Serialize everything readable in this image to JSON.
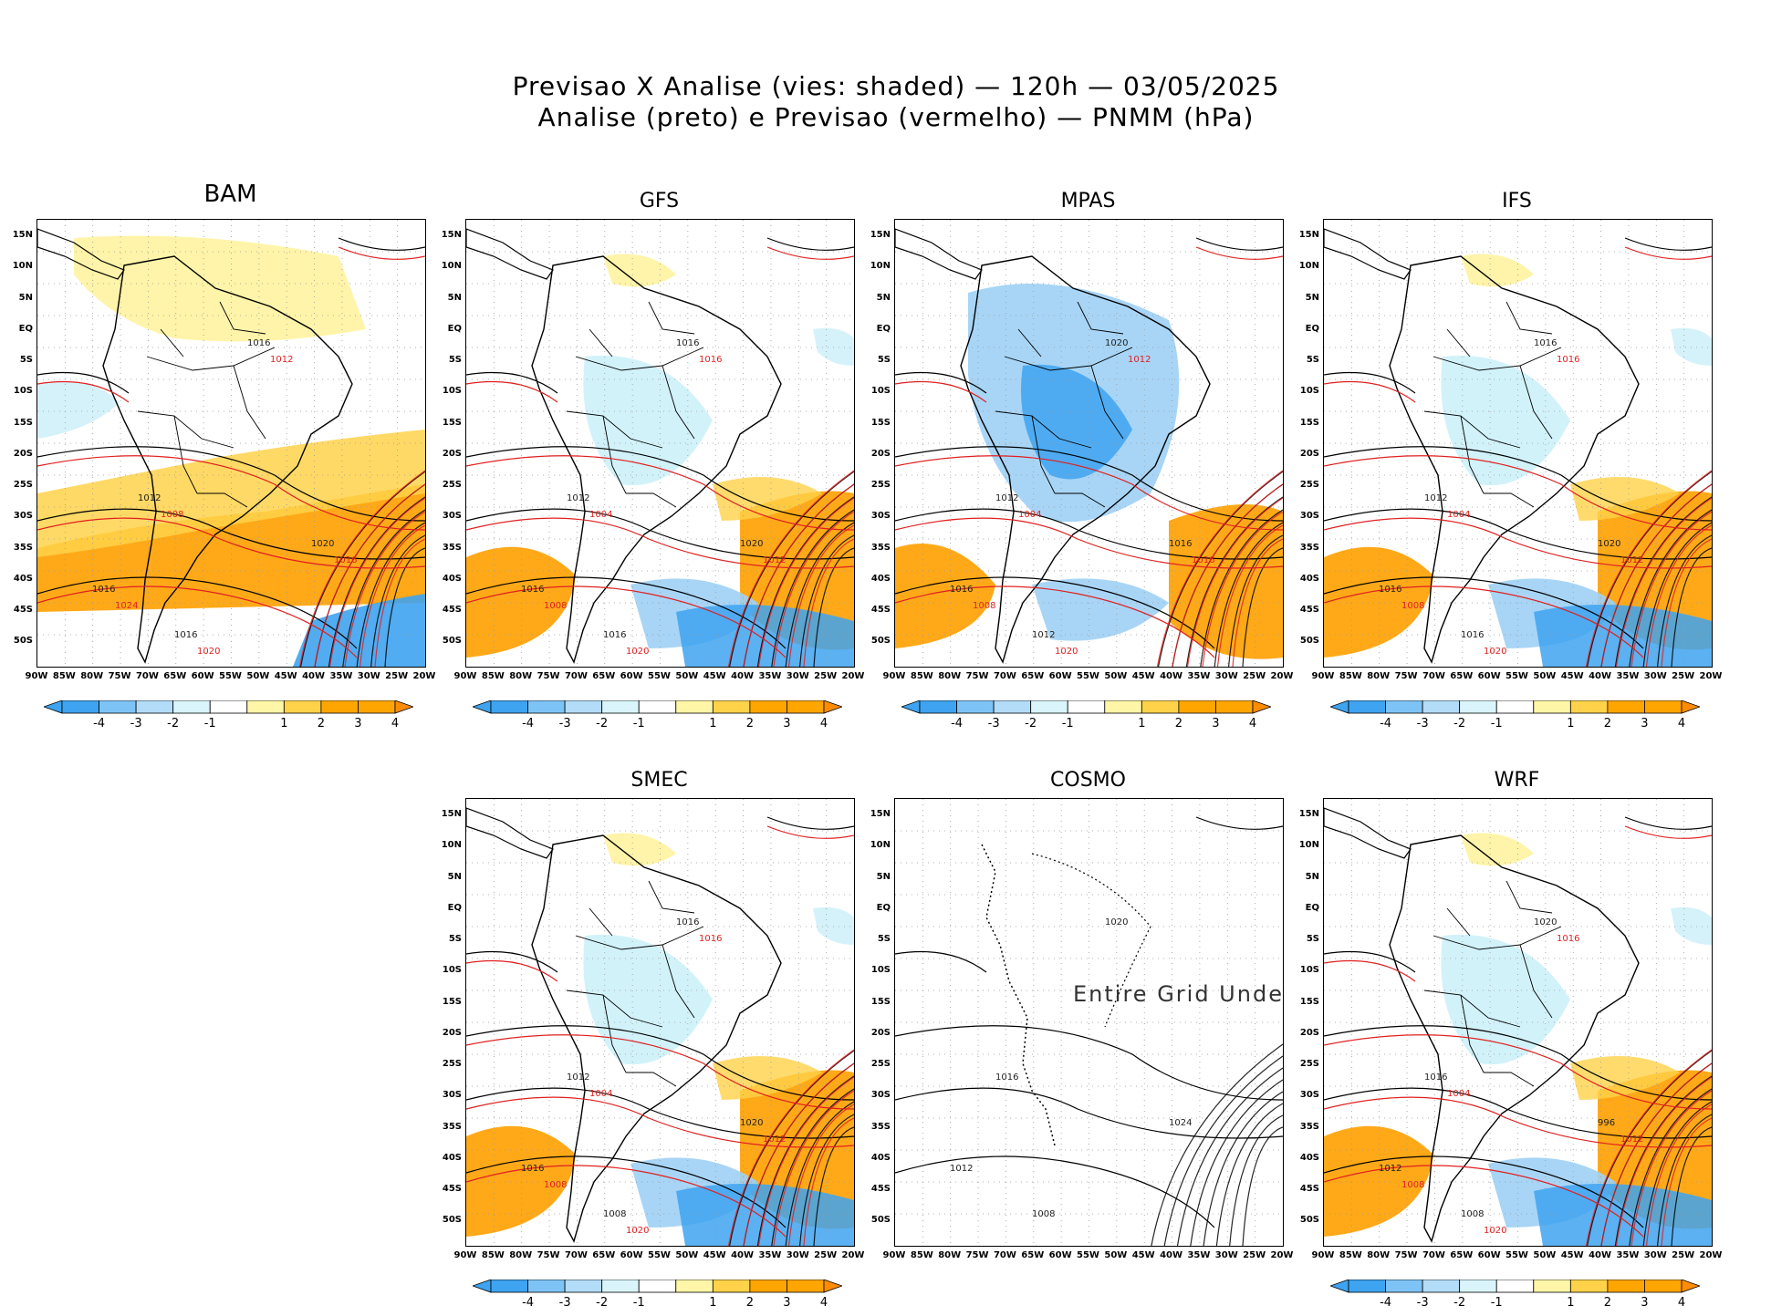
{
  "header": {
    "title_line1": "Previsao X Analise (vies: shaded) — 120h — 03/05/2025",
    "title_line2": "Analise (preto) e Previsao (vermelho) — PNMM (hPa)"
  },
  "axes": {
    "lat_labels": [
      "15N",
      "10N",
      "5N",
      "EQ",
      "5S",
      "10S",
      "15S",
      "20S",
      "25S",
      "30S",
      "35S",
      "40S",
      "45S",
      "50S"
    ],
    "lon_labels": [
      "90W",
      "85W",
      "80W",
      "75W",
      "70W",
      "65W",
      "60W",
      "55W",
      "50W",
      "45W",
      "40W",
      "35W",
      "30W",
      "25W",
      "20W"
    ],
    "smec_lon_labels": [
      "90W",
      "85W",
      "80W",
      "75W",
      "70W",
      "65W",
      "60W",
      "55W",
      "50W",
      "45W",
      "40W",
      "35W",
      "30W",
      "25W",
      "20W"
    ]
  },
  "colorbar": {
    "labels": [
      "-4",
      "-3",
      "-2",
      "-1",
      "1",
      "2",
      "3",
      "4"
    ],
    "colors": [
      "#3ea3f0",
      "#7ec3f5",
      "#b3dcf8",
      "#d9f5fb",
      "#ffffff",
      "#fff6a8",
      "#ffd24a",
      "#ffa500",
      "#ff8c00"
    ]
  },
  "colors": {
    "analysis": "#000000",
    "forecast": "#e02020",
    "neg_strong": "#3ea3f0",
    "neg_mid": "#9fd0f5",
    "neg_light": "#d0f1fa",
    "pos_light": "#fff3a0",
    "pos_mid": "#ffd24a",
    "pos_strong": "#ffa000"
  },
  "panels": [
    {
      "name": "BAM",
      "bias": "pos",
      "labels_a": [
        "1016",
        "1012",
        "1016",
        "1020",
        "1016"
      ],
      "labels_f": [
        "1012",
        "1016",
        "1020",
        "1024",
        "1008"
      ]
    },
    {
      "name": "GFS",
      "bias": "mix",
      "labels_a": [
        "1016",
        "1012",
        "1016",
        "1020",
        "1016"
      ],
      "labels_f": [
        "1016",
        "1012",
        "1020",
        "1008",
        "1004"
      ]
    },
    {
      "name": "MPAS",
      "bias": "neg",
      "labels_a": [
        "1016",
        "1012",
        "1020",
        "1016",
        "1012"
      ],
      "labels_f": [
        "1012",
        "1016",
        "1020",
        "1008",
        "1004"
      ]
    },
    {
      "name": "IFS",
      "bias": "mix",
      "labels_a": [
        "1016",
        "1012",
        "1016",
        "1020",
        "1016"
      ],
      "labels_f": [
        "1016",
        "1012",
        "1020",
        "1008",
        "1004"
      ]
    },
    {
      "name": "SMEC",
      "bias": "mix",
      "labels_a": [
        "1016",
        "1012",
        "1016",
        "1020",
        "1008"
      ],
      "labels_f": [
        "1016",
        "1012",
        "1020",
        "1008",
        "1004"
      ]
    },
    {
      "name": "COSMO",
      "bias": "none",
      "labels_a": [
        "1012",
        "1016",
        "1020",
        "1024",
        "1008"
      ],
      "labels_f": [],
      "undef_text": "Entire Grid Undef"
    },
    {
      "name": "WRF",
      "bias": "mix",
      "labels_a": [
        "1012",
        "1016",
        "1020",
        "996",
        "1008"
      ],
      "labels_f": [
        "1016",
        "1012",
        "1020",
        "1008",
        "1004"
      ]
    }
  ]
}
